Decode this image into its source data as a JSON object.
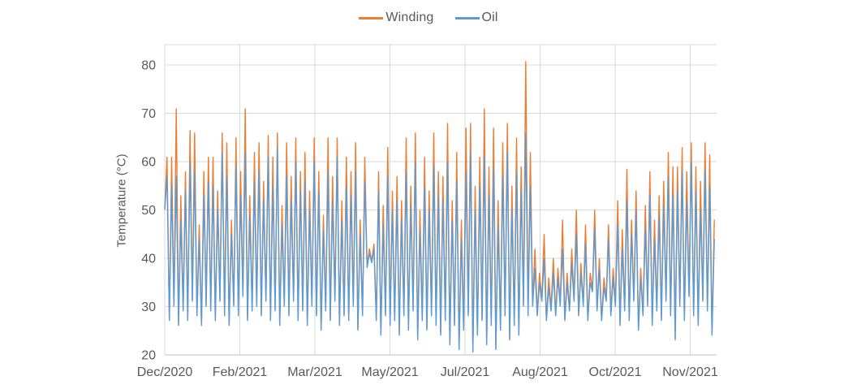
{
  "legend": {
    "items": [
      {
        "label": "Winding",
        "color": "#ED7D31"
      },
      {
        "label": "Oil",
        "color": "#5B9BD5"
      }
    ]
  },
  "axis_style": {
    "text_color": "#595959",
    "grid_color": "#D9D9D9",
    "axis_line_color": "#BFBFBF"
  },
  "chart_data": {
    "type": "line",
    "title": "",
    "xlabel": "",
    "ylabel": "Temperature (°C)",
    "y_ticks": [
      20,
      30,
      40,
      50,
      60,
      70,
      80
    ],
    "ylim": [
      20,
      84.2
    ],
    "x_tick_labels": [
      "Dec/2020",
      "Feb/2021",
      "Mar/2021",
      "May/2021",
      "Jul/2021",
      "Aug/2021",
      "Oct/2021",
      "Nov/2021"
    ],
    "x_range": "Dec 2020 to early Dec 2021, dense (sub-daily) sampling",
    "grid": true,
    "legend_position": "top-center",
    "series_names": [
      "Winding",
      "Oil"
    ],
    "series_colors": [
      "#ED7D31",
      "#5B9BD5"
    ],
    "draw_order_note": "Oil drawn on top of Winding; orange visible mainly at peaks",
    "sample_format": "each entry = [oil_min, oil_max, winding_max] over a ~3-day window; winding_min tracks oil_min",
    "notable_values": {
      "max_winding": 80.8,
      "max_winding_date_approx": "early Aug 2021",
      "min_oil": 20.5
    },
    "points": [
      [
        50,
        57,
        61
      ],
      [
        27,
        55,
        61
      ],
      [
        30,
        57,
        71
      ],
      [
        26,
        48,
        53
      ],
      [
        29,
        54,
        58
      ],
      [
        27,
        60,
        66.5
      ],
      [
        31,
        58,
        66
      ],
      [
        28,
        44,
        47
      ],
      [
        26,
        53,
        58
      ],
      [
        30,
        56,
        61
      ],
      [
        29,
        55,
        61
      ],
      [
        27,
        50,
        54
      ],
      [
        31,
        62,
        66
      ],
      [
        28,
        57,
        64
      ],
      [
        26,
        45,
        48
      ],
      [
        30,
        59,
        65
      ],
      [
        28,
        53,
        58
      ],
      [
        32,
        62,
        71
      ],
      [
        27,
        49,
        53
      ],
      [
        29,
        56,
        62
      ],
      [
        30,
        58,
        64
      ],
      [
        28,
        52,
        56
      ],
      [
        31,
        61,
        65.5
      ],
      [
        27,
        55,
        61
      ],
      [
        29,
        63,
        66
      ],
      [
        26,
        47,
        51
      ],
      [
        30,
        57,
        64
      ],
      [
        28,
        52,
        57
      ],
      [
        31,
        60,
        65
      ],
      [
        27,
        54,
        58
      ],
      [
        29,
        56,
        62
      ],
      [
        26,
        50,
        54
      ],
      [
        30,
        60,
        65
      ],
      [
        28,
        54,
        58
      ],
      [
        25,
        46,
        49
      ],
      [
        29,
        58,
        65
      ],
      [
        27,
        52,
        57
      ],
      [
        31,
        61,
        65
      ],
      [
        26,
        48,
        52
      ],
      [
        28,
        55,
        61
      ],
      [
        27,
        53,
        58
      ],
      [
        30,
        58,
        64
      ],
      [
        25,
        45,
        48
      ],
      [
        28,
        56,
        61
      ],
      [
        38,
        41,
        42
      ],
      [
        39,
        42,
        43
      ],
      [
        27,
        54,
        58
      ],
      [
        24,
        47,
        51
      ],
      [
        28,
        57,
        63
      ],
      [
        26,
        50,
        54
      ],
      [
        27,
        52,
        57
      ],
      [
        24,
        48,
        52
      ],
      [
        28,
        58,
        65
      ],
      [
        25,
        51,
        55
      ],
      [
        29,
        60,
        66
      ],
      [
        23,
        46,
        50
      ],
      [
        27,
        55,
        61
      ],
      [
        25,
        50,
        54
      ],
      [
        28,
        59,
        66
      ],
      [
        26,
        53,
        58
      ],
      [
        24,
        52,
        57
      ],
      [
        27,
        60,
        68
      ],
      [
        22,
        48,
        52
      ],
      [
        26,
        56,
        62
      ],
      [
        21,
        44,
        48
      ],
      [
        25,
        58,
        67
      ],
      [
        28,
        62,
        68
      ],
      [
        20.5,
        50,
        55
      ],
      [
        24,
        55,
        61
      ],
      [
        27,
        61,
        71
      ],
      [
        22,
        53,
        59
      ],
      [
        26,
        59,
        67
      ],
      [
        21,
        47,
        52
      ],
      [
        25,
        57,
        64
      ],
      [
        28,
        62,
        68
      ],
      [
        23,
        50,
        55
      ],
      [
        26,
        58,
        65
      ],
      [
        24,
        54,
        59
      ],
      [
        30,
        66,
        80.8
      ],
      [
        28,
        55,
        62
      ],
      [
        30,
        38,
        42
      ],
      [
        28,
        35,
        37
      ],
      [
        31,
        40,
        45
      ],
      [
        27,
        34,
        36
      ],
      [
        29,
        37,
        40
      ],
      [
        28,
        36,
        38
      ],
      [
        30,
        42,
        48
      ],
      [
        27,
        35,
        37
      ],
      [
        29,
        39,
        42
      ],
      [
        31,
        45,
        50
      ],
      [
        28,
        37,
        39
      ],
      [
        30,
        43,
        47
      ],
      [
        27,
        35,
        37
      ],
      [
        33,
        46,
        50
      ],
      [
        29,
        38,
        40
      ],
      [
        27,
        34,
        36
      ],
      [
        31,
        44,
        47
      ],
      [
        28,
        36,
        38
      ],
      [
        30,
        47,
        52
      ],
      [
        26,
        42,
        46
      ],
      [
        29,
        52,
        58.5
      ],
      [
        27,
        45,
        48
      ],
      [
        31,
        50,
        54
      ],
      [
        25,
        36,
        38
      ],
      [
        28,
        46,
        51
      ],
      [
        30,
        53,
        58
      ],
      [
        26,
        44,
        48
      ],
      [
        29,
        49,
        53
      ],
      [
        27,
        51,
        56
      ],
      [
        31,
        57,
        62
      ],
      [
        28,
        53,
        59
      ],
      [
        23,
        54,
        59
      ],
      [
        30,
        58,
        63
      ],
      [
        27,
        52,
        58
      ],
      [
        32,
        60,
        64
      ],
      [
        28,
        54,
        59
      ],
      [
        26,
        50,
        56
      ],
      [
        31,
        58,
        64
      ],
      [
        29,
        55,
        61.5
      ],
      [
        24,
        44,
        48
      ]
    ]
  }
}
